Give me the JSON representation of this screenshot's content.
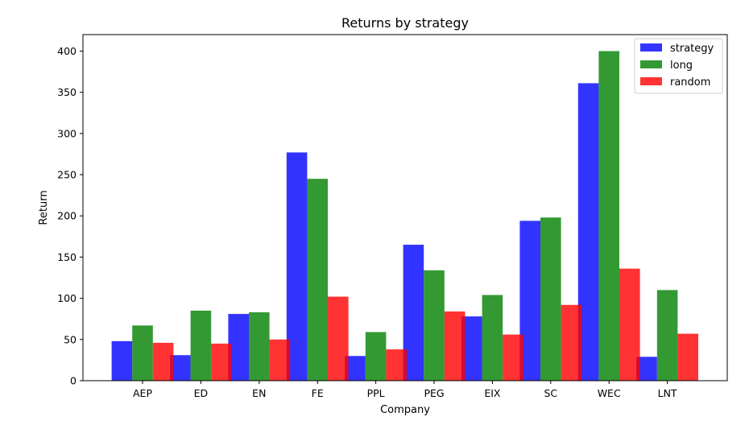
{
  "chart_data": {
    "type": "bar",
    "title": "Returns by strategy",
    "xlabel": "Company",
    "ylabel": "Return",
    "categories": [
      "AEP",
      "ED",
      "EN",
      "FE",
      "PPL",
      "PEG",
      "EIX",
      "SC",
      "WEC",
      "LNT"
    ],
    "series": [
      {
        "name": "strategy",
        "color": "#0000ff",
        "values": [
          48,
          31,
          81,
          277,
          30,
          165,
          78,
          194,
          361,
          29
        ]
      },
      {
        "name": "long",
        "color": "#008000",
        "values": [
          67,
          85,
          83,
          245,
          59,
          134,
          104,
          198,
          400,
          110
        ]
      },
      {
        "name": "random",
        "color": "#ff0000",
        "values": [
          46,
          45,
          50,
          102,
          38,
          84,
          56,
          92,
          136,
          57
        ]
      }
    ],
    "ylim": [
      0,
      420
    ],
    "yticks": [
      0,
      50,
      100,
      150,
      200,
      250,
      300,
      350,
      400
    ],
    "grid": false,
    "legend_position": "top-right",
    "bar_opacity": 0.8
  }
}
